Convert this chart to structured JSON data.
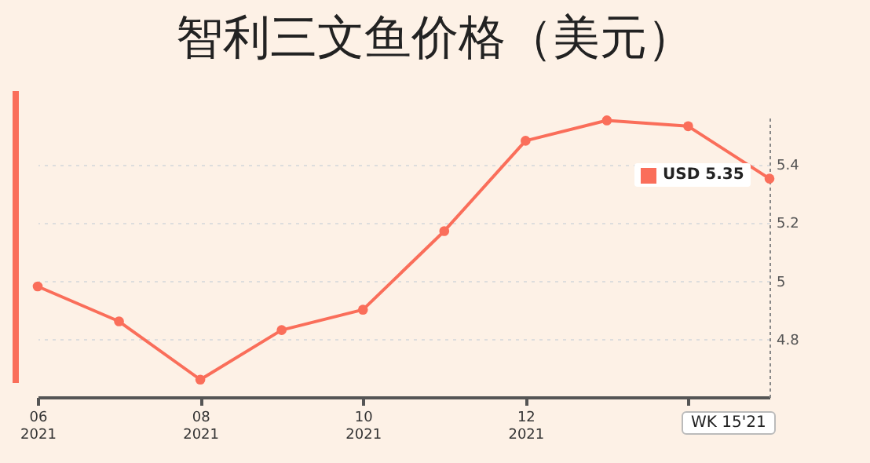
{
  "chart_data": {
    "type": "line",
    "title": "智利三文鱼价格（美元）",
    "categories": [
      "06\n2021",
      null,
      "08\n2021",
      null,
      "10\n2021",
      null,
      "12\n2021",
      null,
      null,
      null
    ],
    "series": [
      {
        "color": "#fa6e5a",
        "values": [
          4.98,
          4.86,
          4.66,
          4.83,
          4.9,
          5.17,
          5.48,
          5.55,
          5.53,
          5.35
        ]
      }
    ],
    "ylim": [
      4.6,
      5.57
    ],
    "yticks": [
      4.8,
      5.0,
      5.2,
      5.4
    ],
    "grid": "y",
    "marker": "circle",
    "line_style": "solid",
    "annotations": [
      "USD 5.35",
      "WK 15'21"
    ]
  }
}
